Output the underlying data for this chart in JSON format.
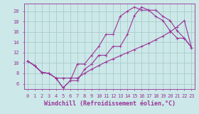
{
  "bg_color": "#cce8e8",
  "grid_color": "#aacccc",
  "line_color": "#993399",
  "xlabel": "Windchill (Refroidissement éolien,°C)",
  "xlim": [
    -0.5,
    23.5
  ],
  "ylim": [
    5.0,
    21.5
  ],
  "xticks": [
    0,
    1,
    2,
    3,
    4,
    5,
    6,
    7,
    8,
    9,
    10,
    11,
    12,
    13,
    14,
    15,
    16,
    17,
    18,
    19,
    20,
    21,
    22,
    23
  ],
  "yticks": [
    6,
    8,
    10,
    12,
    14,
    16,
    18,
    20
  ],
  "line1_x": [
    0,
    1,
    2,
    3,
    4,
    5,
    6,
    7,
    8,
    9,
    10,
    11,
    12,
    13,
    14,
    15,
    16,
    17,
    18,
    19,
    20,
    21,
    22,
    23
  ],
  "line1_y": [
    10.4,
    9.5,
    8.2,
    8.0,
    7.1,
    5.2,
    6.6,
    6.6,
    8.8,
    9.8,
    11.5,
    11.5,
    13.2,
    13.2,
    15.5,
    19.2,
    20.8,
    20.2,
    20.2,
    19.0,
    18.2,
    16.2,
    14.8,
    13.0
  ],
  "line2_x": [
    0,
    1,
    2,
    3,
    4,
    5,
    6,
    7,
    8,
    9,
    10,
    11,
    12,
    13,
    14,
    15,
    16,
    17,
    18,
    19,
    20,
    21,
    22,
    23
  ],
  "line2_y": [
    10.4,
    9.5,
    8.2,
    8.0,
    7.1,
    5.2,
    6.6,
    9.8,
    9.8,
    11.5,
    13.2,
    15.5,
    15.5,
    19.0,
    20.0,
    20.8,
    20.2,
    20.2,
    19.0,
    18.2,
    16.2,
    14.8,
    14.8,
    13.0
  ],
  "line3_x": [
    0,
    1,
    2,
    3,
    4,
    5,
    6,
    7,
    8,
    9,
    10,
    11,
    12,
    13,
    14,
    15,
    16,
    17,
    18,
    19,
    20,
    21,
    22,
    23
  ],
  "line3_y": [
    10.4,
    9.5,
    8.2,
    8.0,
    7.1,
    7.1,
    7.1,
    7.1,
    8.0,
    8.8,
    9.5,
    10.2,
    10.8,
    11.4,
    12.0,
    12.6,
    13.2,
    13.8,
    14.5,
    15.2,
    16.0,
    17.0,
    18.2,
    13.0
  ],
  "tick_fontsize": 5.0,
  "label_fontsize": 6.0,
  "marker_size": 2.0,
  "line_width": 0.8
}
